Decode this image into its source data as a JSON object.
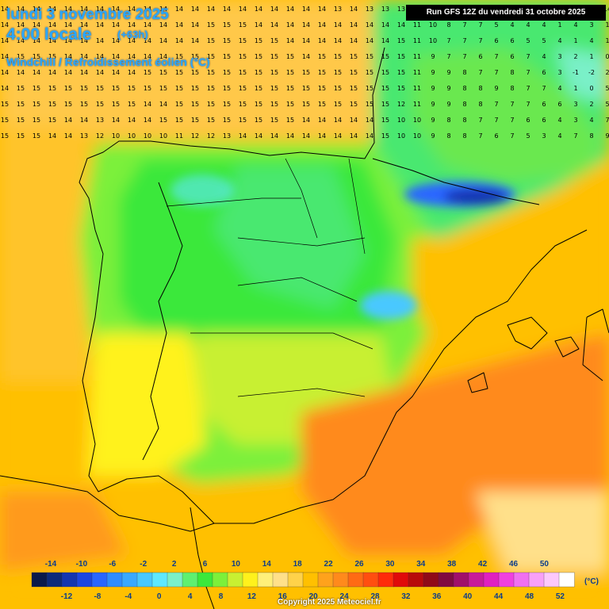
{
  "header": {
    "date_line": "lundi 3 novembre 2025",
    "time_line": "4:00 locale",
    "lead_time": "(+63h)",
    "product": "Windchill / Refroidissement éolien (°C)"
  },
  "run_info": "Run GFS 12Z du vendredi 31 octobre 2025",
  "copyright": "Copyright 2025 Meteociel.fr",
  "legend": {
    "unit": "(°C)",
    "top_labels": [
      "-14",
      "-10",
      "-6",
      "-2",
      "2",
      "6",
      "10",
      "14",
      "18",
      "22",
      "26",
      "30",
      "34",
      "38",
      "42",
      "46",
      "50"
    ],
    "bottom_labels": [
      "-12",
      "-8",
      "-4",
      "0",
      "4",
      "8",
      "12",
      "16",
      "20",
      "24",
      "28",
      "32",
      "36",
      "40",
      "44",
      "48",
      "52"
    ],
    "colors": [
      "#0a1a4a",
      "#0d2a7a",
      "#1436b0",
      "#1c46e0",
      "#2a66ff",
      "#2f8cff",
      "#3aa8ff",
      "#48c8ff",
      "#5ee8ff",
      "#7af0c8",
      "#5ef070",
      "#3be83b",
      "#7cf03a",
      "#c8f032",
      "#fff21c",
      "#fff07a",
      "#ffe08a",
      "#ffd24a",
      "#ffc000",
      "#ffa21c",
      "#ff8a1c",
      "#ff6a14",
      "#ff4e10",
      "#ff2a0a",
      "#e00a0a",
      "#b80a0a",
      "#900a18",
      "#800a40",
      "#a0106a",
      "#c81a9a",
      "#e020c0",
      "#f040e0",
      "#f070f0",
      "#f8a0f8",
      "#fcc8fc",
      "#ffffff"
    ]
  },
  "map_colors": {
    "sea_warm": "#ffc000",
    "sea_mild": "#ffd84a",
    "land_cool": "#7cf03a",
    "land_cold": "#48e870",
    "hot": "#ff8a1c",
    "cold": "#2a66ff"
  },
  "grid_values": [
    [
      "14",
      "14",
      "14",
      "14",
      "14",
      "14",
      "14",
      "14",
      "14",
      "14",
      "14",
      "14",
      "14",
      "14",
      "14",
      "14",
      "14",
      "14",
      "14",
      "14",
      "14",
      "13",
      "14",
      "13",
      "13",
      "13",
      "14",
      "13",
      "13",
      "14",
      "14",
      "14",
      "14",
      "14",
      "14",
      "14",
      "14",
      "14",
      "14"
    ],
    [
      "14",
      "14",
      "14",
      "14",
      "14",
      "14",
      "14",
      "14",
      "14",
      "14",
      "14",
      "14",
      "14",
      "15",
      "15",
      "15",
      "14",
      "14",
      "14",
      "14",
      "14",
      "14",
      "14",
      "14",
      "14",
      "14",
      "11",
      "10",
      "8",
      "7",
      "7",
      "5",
      "4",
      "4",
      "4",
      "1",
      "4",
      "3",
      "1"
    ],
    [
      "14",
      "14",
      "14",
      "14",
      "14",
      "14",
      "14",
      "14",
      "14",
      "14",
      "14",
      "14",
      "14",
      "15",
      "15",
      "15",
      "15",
      "15",
      "14",
      "14",
      "14",
      "14",
      "14",
      "14",
      "14",
      "15",
      "11",
      "10",
      "7",
      "7",
      "7",
      "6",
      "6",
      "5",
      "5",
      "4",
      "1",
      "4",
      "1"
    ],
    [
      "14",
      "15",
      "15",
      "15",
      "14",
      "14",
      "14",
      "14",
      "14",
      "14",
      "14",
      "15",
      "15",
      "15",
      "15",
      "15",
      "15",
      "15",
      "15",
      "14",
      "15",
      "15",
      "15",
      "15",
      "15",
      "15",
      "11",
      "9",
      "7",
      "7",
      "6",
      "7",
      "6",
      "7",
      "4",
      "3",
      "2",
      "1",
      "0"
    ],
    [
      "14",
      "14",
      "14",
      "14",
      "14",
      "14",
      "14",
      "14",
      "14",
      "15",
      "15",
      "15",
      "15",
      "15",
      "15",
      "15",
      "15",
      "15",
      "15",
      "15",
      "15",
      "15",
      "15",
      "15",
      "15",
      "15",
      "11",
      "9",
      "9",
      "8",
      "7",
      "7",
      "8",
      "7",
      "6",
      "3",
      "-1",
      "-2",
      "2"
    ],
    [
      "14",
      "15",
      "15",
      "15",
      "15",
      "15",
      "15",
      "15",
      "15",
      "15",
      "15",
      "15",
      "15",
      "15",
      "15",
      "15",
      "15",
      "15",
      "15",
      "15",
      "15",
      "15",
      "15",
      "15",
      "15",
      "15",
      "11",
      "9",
      "9",
      "8",
      "8",
      "9",
      "8",
      "7",
      "7",
      "4",
      "1",
      "0",
      "5"
    ],
    [
      "15",
      "15",
      "15",
      "15",
      "15",
      "15",
      "15",
      "15",
      "15",
      "14",
      "14",
      "15",
      "15",
      "15",
      "15",
      "15",
      "15",
      "15",
      "15",
      "15",
      "15",
      "15",
      "15",
      "15",
      "15",
      "12",
      "11",
      "9",
      "9",
      "8",
      "8",
      "7",
      "7",
      "7",
      "6",
      "6",
      "3",
      "2",
      "5"
    ],
    [
      "15",
      "15",
      "15",
      "15",
      "14",
      "14",
      "13",
      "14",
      "14",
      "14",
      "15",
      "15",
      "15",
      "15",
      "15",
      "15",
      "15",
      "15",
      "15",
      "14",
      "14",
      "14",
      "14",
      "14",
      "15",
      "10",
      "10",
      "9",
      "8",
      "8",
      "7",
      "7",
      "7",
      "6",
      "6",
      "4",
      "3",
      "4",
      "7"
    ],
    [
      "15",
      "15",
      "15",
      "14",
      "14",
      "13",
      "12",
      "10",
      "10",
      "10",
      "10",
      "11",
      "12",
      "12",
      "13",
      "14",
      "14",
      "14",
      "14",
      "14",
      "14",
      "14",
      "14",
      "14",
      "15",
      "10",
      "10",
      "9",
      "8",
      "8",
      "7",
      "6",
      "7",
      "5",
      "3",
      "4",
      "7",
      "8",
      "9"
    ]
  ]
}
